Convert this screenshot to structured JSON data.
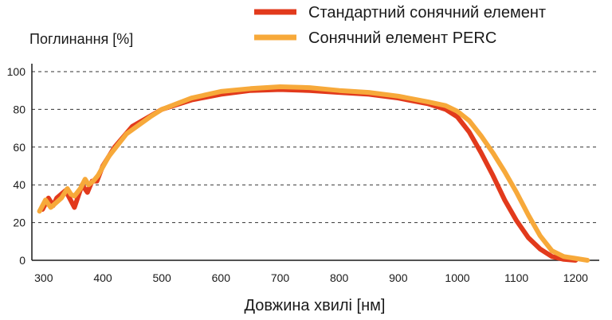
{
  "chart_data": {
    "type": "line",
    "xlabel": "Довжина хвилі [нм]",
    "ylabel": "Поглинання [%]",
    "xlim": [
      280,
      1240
    ],
    "ylim": [
      0,
      100
    ],
    "x_ticks": [
      300,
      400,
      500,
      600,
      700,
      800,
      900,
      1000,
      1100,
      1200
    ],
    "y_ticks": [
      0,
      20,
      40,
      60,
      80,
      100
    ],
    "grid": "horizontal dashed",
    "legend_position": "top-right",
    "series": [
      {
        "name": "Стандартний сонячний елемент",
        "color": "#e23a1c",
        "points": [
          [
            298,
            27
          ],
          [
            308,
            33
          ],
          [
            316,
            29
          ],
          [
            322,
            33
          ],
          [
            337,
            37
          ],
          [
            352,
            28
          ],
          [
            365,
            40
          ],
          [
            374,
            36
          ],
          [
            382,
            42
          ],
          [
            390,
            42
          ],
          [
            400,
            50
          ],
          [
            420,
            60
          ],
          [
            450,
            71
          ],
          [
            500,
            80
          ],
          [
            550,
            85
          ],
          [
            600,
            88
          ],
          [
            650,
            90
          ],
          [
            700,
            90.5
          ],
          [
            750,
            90
          ],
          [
            800,
            89
          ],
          [
            850,
            88
          ],
          [
            900,
            86
          ],
          [
            950,
            83
          ],
          [
            980,
            80
          ],
          [
            1000,
            76
          ],
          [
            1020,
            68
          ],
          [
            1040,
            57
          ],
          [
            1060,
            45
          ],
          [
            1080,
            32
          ],
          [
            1100,
            21
          ],
          [
            1120,
            12
          ],
          [
            1140,
            6
          ],
          [
            1160,
            2
          ],
          [
            1180,
            0.5
          ],
          [
            1200,
            0
          ]
        ]
      },
      {
        "name": "Сонячний елемент PERC",
        "color": "#f7a93a",
        "points": [
          [
            293,
            26
          ],
          [
            303,
            32
          ],
          [
            312,
            28
          ],
          [
            330,
            33
          ],
          [
            340,
            38
          ],
          [
            346,
            35
          ],
          [
            352,
            34
          ],
          [
            362,
            38
          ],
          [
            370,
            43
          ],
          [
            376,
            40
          ],
          [
            384,
            42
          ],
          [
            392,
            45
          ],
          [
            410,
            55
          ],
          [
            440,
            67
          ],
          [
            480,
            76
          ],
          [
            500,
            80
          ],
          [
            550,
            86
          ],
          [
            600,
            89.5
          ],
          [
            650,
            91
          ],
          [
            700,
            92
          ],
          [
            750,
            91.5
          ],
          [
            800,
            90
          ],
          [
            850,
            89
          ],
          [
            900,
            87
          ],
          [
            950,
            84
          ],
          [
            980,
            82
          ],
          [
            1000,
            79
          ],
          [
            1020,
            74
          ],
          [
            1040,
            66
          ],
          [
            1060,
            57
          ],
          [
            1080,
            47
          ],
          [
            1100,
            36
          ],
          [
            1120,
            24
          ],
          [
            1140,
            13
          ],
          [
            1160,
            5
          ],
          [
            1180,
            2
          ],
          [
            1200,
            1
          ],
          [
            1220,
            0
          ]
        ]
      }
    ]
  }
}
